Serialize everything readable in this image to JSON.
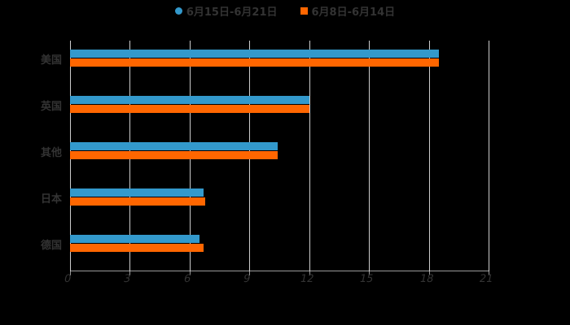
{
  "chart_data": {
    "type": "bar",
    "orientation": "horizontal",
    "title": "",
    "xlabel": "",
    "ylabel": "",
    "categories": [
      "美国",
      "英国",
      "其他",
      "日本",
      "德国"
    ],
    "series": [
      {
        "name": "6月15日-6月21日",
        "color": "#3399CC",
        "values": [
          18.5,
          12.0,
          10.4,
          6.7,
          6.5
        ]
      },
      {
        "name": "6月8日-6月14日",
        "color": "#FF6600",
        "values": [
          18.5,
          12.0,
          10.4,
          6.8,
          6.7
        ]
      }
    ],
    "xlim": [
      0,
      21
    ],
    "x_ticks": [
      "0",
      "3",
      "6",
      "9",
      "12",
      "15",
      "18",
      "21"
    ],
    "grid": true,
    "legend_position": "top"
  },
  "legend": {
    "items": [
      {
        "label": "6月15日-6月21日",
        "marker": "circle",
        "color": "#3399CC"
      },
      {
        "label": "6月8日-6月14日",
        "marker": "square",
        "color": "#FF6600"
      }
    ]
  }
}
